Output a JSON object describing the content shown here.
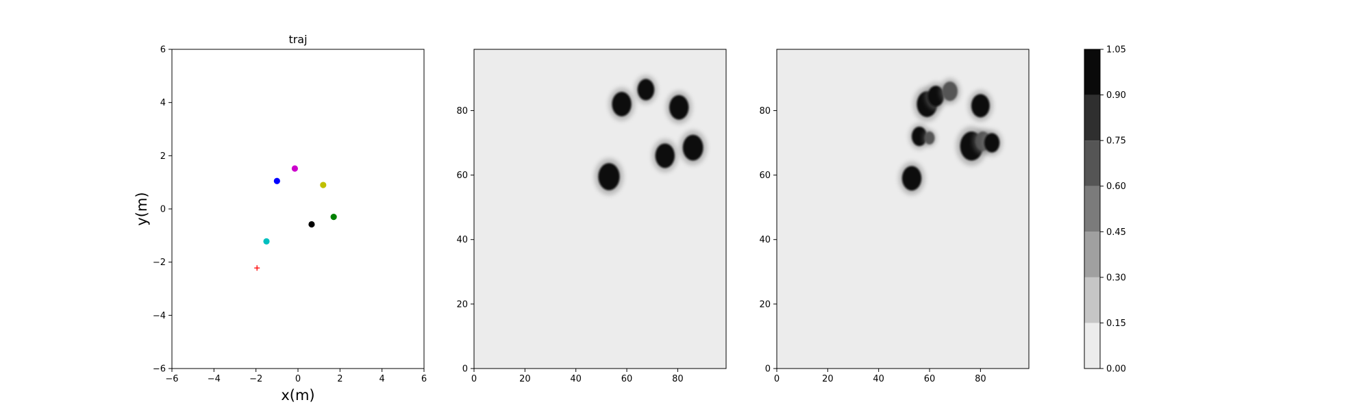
{
  "chart_data": [
    {
      "type": "scatter",
      "title": "traj",
      "xlabel": "x(m)",
      "ylabel": "y(m)",
      "xlim": [
        -6,
        6
      ],
      "ylim": [
        -6,
        6
      ],
      "xticks": [
        -6,
        -4,
        -2,
        0,
        2,
        4,
        6
      ],
      "yticks": [
        -6,
        -4,
        -2,
        0,
        2,
        4,
        6
      ],
      "points": [
        {
          "x": -1.0,
          "y": 1.05,
          "color": "#0000ff",
          "marker": "circle"
        },
        {
          "x": -0.15,
          "y": 1.52,
          "color": "#cc00cc",
          "marker": "circle"
        },
        {
          "x": 1.2,
          "y": 0.9,
          "color": "#bfbf00",
          "marker": "circle"
        },
        {
          "x": 1.7,
          "y": -0.3,
          "color": "#008000",
          "marker": "circle"
        },
        {
          "x": 0.65,
          "y": -0.58,
          "color": "#000000",
          "marker": "circle"
        },
        {
          "x": -1.5,
          "y": -1.22,
          "color": "#00bfbf",
          "marker": "circle"
        },
        {
          "x": -1.95,
          "y": -2.22,
          "color": "#ff0000",
          "marker": "plus"
        }
      ],
      "grid": false
    },
    {
      "type": "heatmap",
      "xlim": [
        0,
        99
      ],
      "ylim": [
        0,
        99
      ],
      "xticks": [
        0,
        20,
        40,
        60,
        80
      ],
      "yticks": [
        0,
        20,
        40,
        60,
        80
      ],
      "background_level": 0.05,
      "blobs": [
        {
          "x": 53,
          "y": 59.5,
          "r": 4.2,
          "level": 1.0
        },
        {
          "x": 58,
          "y": 82,
          "r": 3.8,
          "level": 1.0
        },
        {
          "x": 67.5,
          "y": 86.5,
          "r": 3.3,
          "level": 1.0
        },
        {
          "x": 80.5,
          "y": 81,
          "r": 3.8,
          "level": 1.0
        },
        {
          "x": 75,
          "y": 66,
          "r": 3.8,
          "level": 1.0
        },
        {
          "x": 86,
          "y": 68.5,
          "r": 4.0,
          "level": 1.0
        }
      ]
    },
    {
      "type": "heatmap",
      "xlim": [
        0,
        99
      ],
      "ylim": [
        0,
        99
      ],
      "xticks": [
        0,
        20,
        40,
        60,
        80
      ],
      "yticks": [
        0,
        20,
        40,
        60,
        80
      ],
      "background_level": 0.05,
      "blobs": [
        {
          "x": 53,
          "y": 59,
          "r": 3.8,
          "level": 1.0
        },
        {
          "x": 56,
          "y": 72,
          "r": 3.0,
          "level": 1.0
        },
        {
          "x": 60,
          "y": 71.5,
          "r": 2.0,
          "level": 0.6
        },
        {
          "x": 59,
          "y": 82,
          "r": 4.0,
          "level": 1.0
        },
        {
          "x": 62.5,
          "y": 84.5,
          "r": 3.2,
          "level": 0.9
        },
        {
          "x": 68,
          "y": 86,
          "r": 3.0,
          "level": 0.6
        },
        {
          "x": 80,
          "y": 81.5,
          "r": 3.6,
          "level": 1.0
        },
        {
          "x": 76.5,
          "y": 69,
          "r": 4.5,
          "level": 1.0
        },
        {
          "x": 81,
          "y": 70.5,
          "r": 3.0,
          "level": 0.7
        },
        {
          "x": 84.5,
          "y": 70,
          "r": 3.0,
          "level": 0.9
        }
      ]
    }
  ],
  "colorbar": {
    "levels": [
      0.0,
      0.15,
      0.3,
      0.45,
      0.6,
      0.75,
      0.9,
      1.05
    ],
    "labels": [
      "0.00",
      "0.15",
      "0.30",
      "0.45",
      "0.60",
      "0.75",
      "0.90",
      "1.05"
    ],
    "colors": [
      "#ececec",
      "#c6c6c6",
      "#a0a0a0",
      "#7b7b7b",
      "#555555",
      "#2f2f2f",
      "#0a0a0a"
    ]
  }
}
